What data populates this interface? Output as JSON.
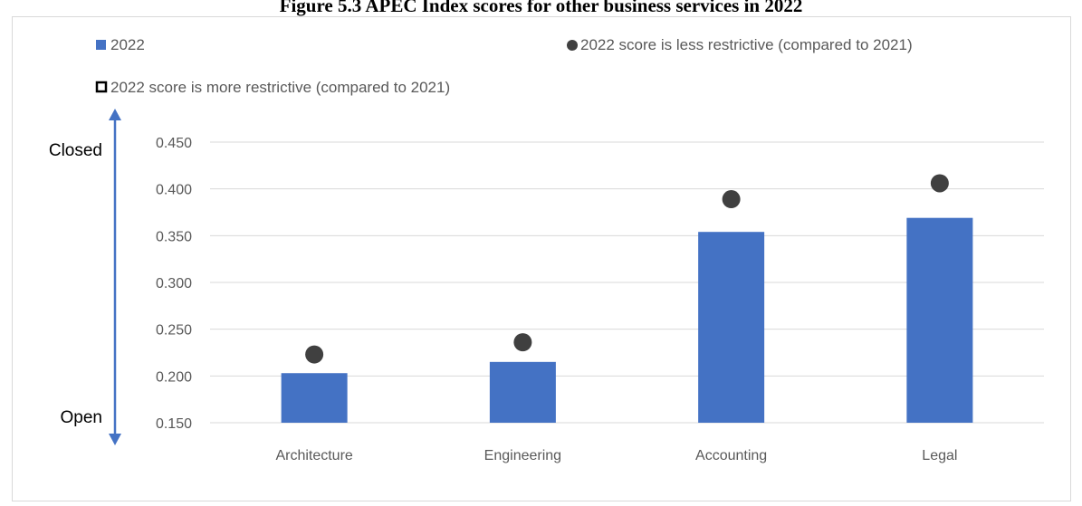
{
  "figure_title": "Figure 5.3 APEC Index scores for other business services in 2022",
  "legend": {
    "bar_label": "2022",
    "less_label": "2022 score is less restrictive (compared to 2021)",
    "more_label": "2022 score is more restrictive (compared to 2021)"
  },
  "scale_labels": {
    "top": "Closed",
    "bottom": "Open"
  },
  "colors": {
    "bar": "#4472c4",
    "dot": "#404040",
    "arrow": "#4472c4",
    "grid": "#d9d9d9"
  },
  "chart_data": {
    "type": "bar",
    "categories": [
      "Architecture",
      "Engineering",
      "Accounting",
      "Legal"
    ],
    "series": [
      {
        "name": "2022",
        "values": [
          0.203,
          0.215,
          0.354,
          0.369
        ]
      },
      {
        "name": "2022 score is less restrictive (compared to 2021)",
        "values": [
          0.223,
          0.236,
          0.389,
          0.406
        ]
      }
    ],
    "ylim": [
      0.15,
      0.45
    ],
    "yticks": [
      "0.150",
      "0.200",
      "0.250",
      "0.300",
      "0.350",
      "0.400",
      "0.450"
    ],
    "grid": true,
    "legend_position": "top"
  }
}
